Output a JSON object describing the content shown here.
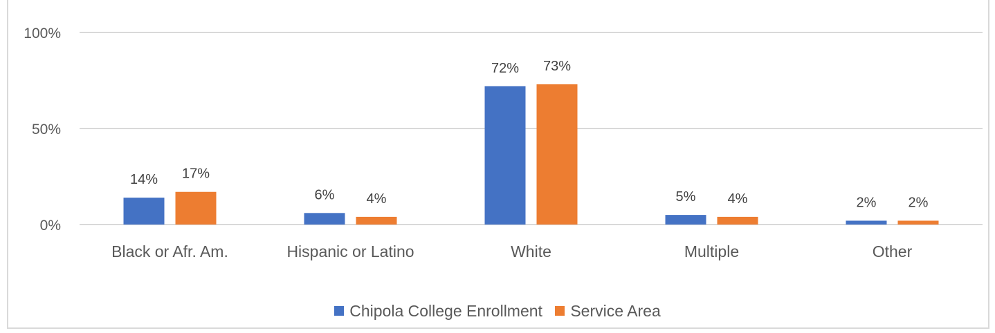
{
  "chart_data": {
    "type": "bar",
    "categories": [
      "Black or Afr. Am.",
      "Hispanic or Latino",
      "White",
      "Multiple",
      "Other"
    ],
    "series": [
      {
        "name": "Chipola College Enrollment",
        "color": "#4472c4",
        "values": [
          14,
          6,
          72,
          5,
          2
        ]
      },
      {
        "name": "Service Area",
        "color": "#ed7d31",
        "values": [
          17,
          4,
          73,
          4,
          2
        ]
      }
    ],
    "value_labels": [
      [
        "14%",
        "6%",
        "72%",
        "5%",
        "2%"
      ],
      [
        "17%",
        "4%",
        "73%",
        "4%",
        "2%"
      ]
    ],
    "yticks": [
      "0%",
      "50%",
      "100%"
    ],
    "ylim": [
      0,
      100
    ],
    "grid": true,
    "legend_position": "bottom"
  }
}
